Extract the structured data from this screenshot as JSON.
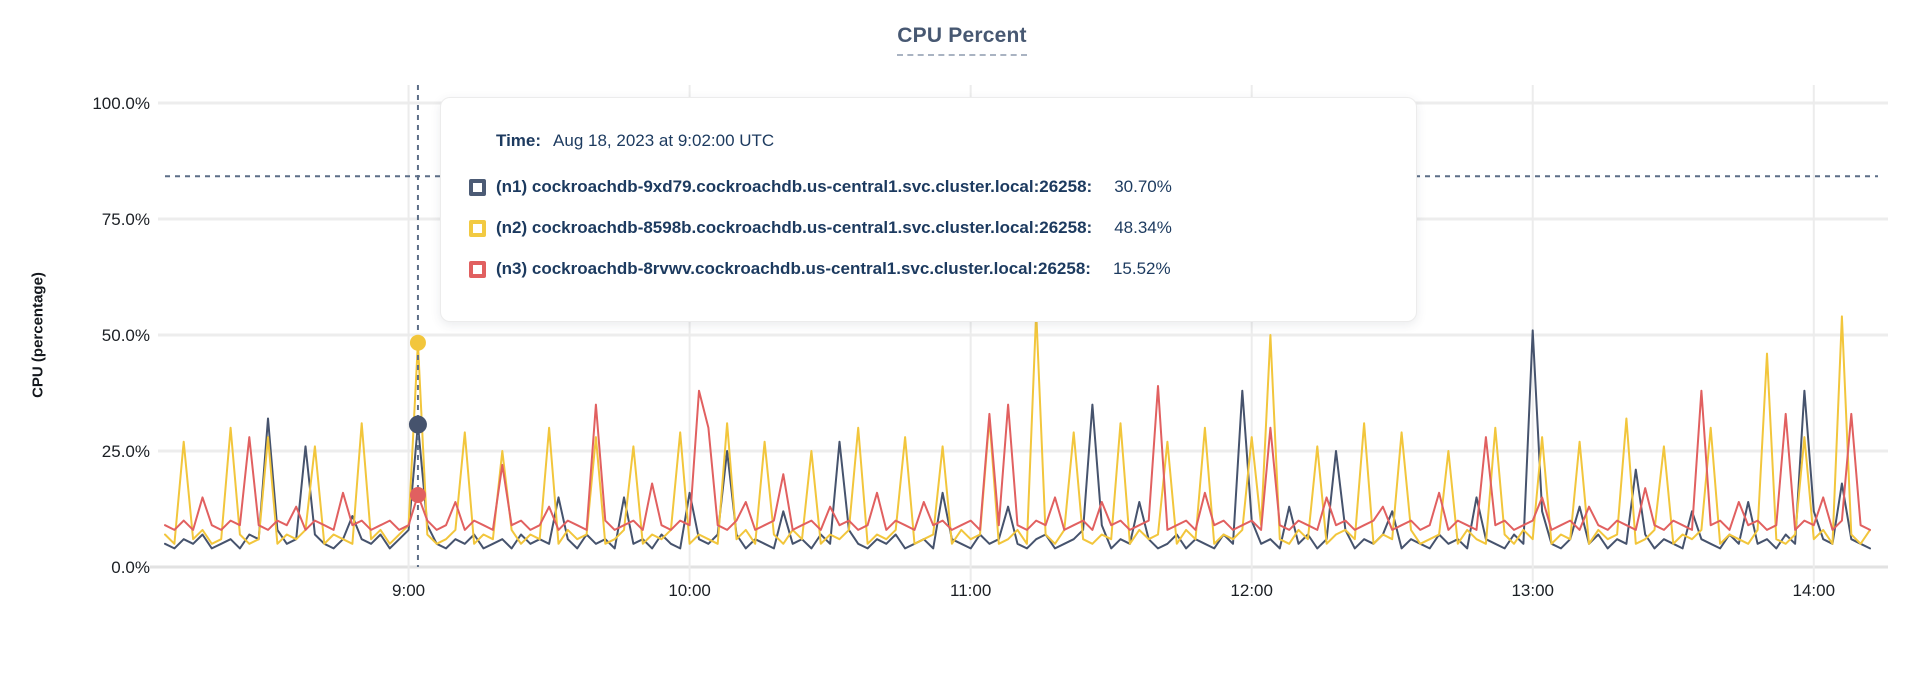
{
  "title": "CPU Percent",
  "ylabel": "CPU (percentage)",
  "tooltip": {
    "time_label": "Time:",
    "time_value": "Aug 18, 2023 at 9:02:00 UTC",
    "rows": [
      {
        "label": "(n1) cockroachdb-9xd79.cockroachdb.us-central1.svc.cluster.local:26258:",
        "value": "30.70%",
        "color": "#4c5b75"
      },
      {
        "label": "(n2) cockroachdb-8598b.cockroachdb.us-central1.svc.cluster.local:26258:",
        "value": "48.34%",
        "color": "#f2ca42"
      },
      {
        "label": "(n3) cockroachdb-8rvwv.cockroachdb.us-central1.svc.cluster.local:26258:",
        "value": "15.52%",
        "color": "#e16060"
      }
    ]
  },
  "chart_data": {
    "type": "line",
    "title": "CPU Percent",
    "xlabel": "",
    "ylabel": "CPU (percentage)",
    "ylim": [
      0,
      100
    ],
    "grid": true,
    "legend_position": "tooltip",
    "y_tick_labels": [
      "0.0%",
      "25.0%",
      "50.0%",
      "75.0%",
      "100.0%"
    ],
    "y_tick_values": [
      0,
      25,
      50,
      75,
      100
    ],
    "x_tick_labels": [
      "9:00",
      "10:00",
      "11:00",
      "12:00",
      "13:00",
      "14:00"
    ],
    "x_tick_minutes": [
      52,
      112,
      172,
      232,
      292,
      352
    ],
    "x_total_minutes": 364,
    "sample_interval_minutes": 2,
    "hover": {
      "index": 27,
      "time": "Aug 18, 2023 at 9:02:00 UTC",
      "cursor_y_value": 84.2,
      "values": [
        30.7,
        48.34,
        15.52
      ]
    },
    "series": [
      {
        "name": "(n1) cockroachdb-9xd79.cockroachdb.us-central1.svc.cluster.local:26258",
        "color": "#46536d",
        "values": [
          5,
          4,
          6,
          5,
          7,
          4,
          5,
          6,
          4,
          7,
          6,
          32,
          8,
          5,
          6,
          26,
          7,
          5,
          4,
          6,
          11,
          6,
          5,
          7,
          4,
          6,
          8,
          30.7,
          9,
          5,
          4,
          6,
          5,
          7,
          4,
          5,
          6,
          4,
          7,
          5,
          6,
          5,
          15,
          6,
          4,
          7,
          5,
          6,
          4,
          15,
          5,
          6,
          4,
          7,
          5,
          4,
          16,
          6,
          5,
          7,
          25,
          7,
          4,
          6,
          5,
          4,
          12,
          5,
          6,
          4,
          7,
          5,
          27,
          8,
          5,
          4,
          6,
          5,
          7,
          4,
          5,
          6,
          4,
          16,
          6,
          5,
          4,
          7,
          5,
          6,
          13,
          5,
          4,
          6,
          7,
          4,
          5,
          6,
          8,
          35,
          9,
          4,
          6,
          5,
          14,
          6,
          4,
          5,
          7,
          4,
          6,
          5,
          4,
          7,
          5,
          38,
          10,
          5,
          6,
          4,
          13,
          5,
          7,
          4,
          6,
          25,
          8,
          4,
          6,
          5,
          7,
          12,
          4,
          6,
          5,
          4,
          7,
          5,
          6,
          4,
          15,
          6,
          5,
          4,
          7,
          5,
          51,
          12,
          5,
          4,
          6,
          13,
          5,
          7,
          4,
          6,
          5,
          21,
          7,
          4,
          6,
          5,
          4,
          12,
          6,
          5,
          4,
          7,
          5,
          14,
          5,
          6,
          4,
          7,
          5,
          38,
          12,
          6,
          5,
          18,
          6,
          5,
          4
        ]
      },
      {
        "name": "(n2) cockroachdb-8598b.cockroachdb.us-central1.svc.cluster.local:26258",
        "color": "#f2c63c",
        "values": [
          7,
          5,
          27,
          6,
          8,
          5,
          6,
          30,
          7,
          5,
          6,
          28,
          5,
          7,
          6,
          8,
          26,
          5,
          7,
          6,
          5,
          31,
          6,
          8,
          5,
          7,
          9,
          48.34,
          7,
          5,
          6,
          8,
          29,
          5,
          7,
          6,
          25,
          8,
          5,
          7,
          6,
          30,
          5,
          8,
          6,
          7,
          28,
          5,
          6,
          8,
          26,
          5,
          7,
          6,
          8,
          29,
          5,
          7,
          6,
          5,
          31,
          6,
          8,
          5,
          27,
          7,
          5,
          8,
          6,
          25,
          5,
          7,
          6,
          8,
          30,
          5,
          7,
          6,
          8,
          28,
          5,
          6,
          7,
          26,
          5,
          8,
          6,
          7,
          32,
          5,
          6,
          8,
          5,
          55,
          7,
          5,
          8,
          29,
          6,
          5,
          7,
          6,
          31,
          5,
          8,
          6,
          7,
          27,
          5,
          8,
          6,
          30,
          5,
          7,
          6,
          8,
          28,
          9,
          50,
          6,
          5,
          8,
          6,
          26,
          5,
          7,
          8,
          6,
          31,
          5,
          7,
          6,
          29,
          8,
          5,
          6,
          7,
          25,
          5,
          8,
          6,
          5,
          30,
          7,
          5,
          8,
          6,
          28,
          5,
          7,
          6,
          27,
          5,
          8,
          6,
          7,
          32,
          5,
          6,
          8,
          26,
          5,
          7,
          6,
          8,
          30,
          5,
          7,
          6,
          5,
          8,
          46,
          6,
          5,
          7,
          28,
          6,
          8,
          5,
          54,
          7,
          5,
          8
        ]
      },
      {
        "name": "(n3) cockroachdb-8rvwv.cockroachdb.us-central1.svc.cluster.local:26258",
        "color": "#e16060",
        "values": [
          9,
          8,
          10,
          8,
          15,
          9,
          8,
          10,
          9,
          28,
          9,
          8,
          10,
          9,
          13,
          8,
          10,
          9,
          8,
          16,
          9,
          10,
          8,
          9,
          10,
          8,
          9,
          15.52,
          10,
          8,
          9,
          14,
          8,
          10,
          9,
          8,
          22,
          9,
          10,
          8,
          9,
          13,
          8,
          10,
          9,
          8,
          35,
          10,
          8,
          9,
          10,
          8,
          18,
          9,
          8,
          10,
          9,
          38,
          30,
          9,
          8,
          10,
          14,
          8,
          9,
          10,
          20,
          8,
          9,
          10,
          8,
          13,
          9,
          10,
          8,
          9,
          16,
          8,
          10,
          9,
          8,
          14,
          9,
          10,
          8,
          9,
          10,
          8,
          33,
          9,
          35,
          9,
          8,
          10,
          9,
          15,
          8,
          9,
          10,
          8,
          14,
          9,
          10,
          8,
          9,
          10,
          39,
          8,
          9,
          10,
          8,
          16,
          9,
          10,
          8,
          9,
          10,
          8,
          30,
          9,
          8,
          10,
          9,
          8,
          15,
          9,
          10,
          8,
          9,
          10,
          13,
          8,
          9,
          10,
          8,
          9,
          16,
          8,
          10,
          9,
          8,
          28,
          9,
          10,
          8,
          9,
          10,
          15,
          8,
          9,
          10,
          8,
          13,
          9,
          8,
          10,
          9,
          8,
          17,
          9,
          8,
          10,
          9,
          8,
          38,
          9,
          10,
          8,
          14,
          9,
          10,
          8,
          9,
          33,
          8,
          10,
          9,
          15,
          8,
          10,
          33,
          9,
          8
        ]
      }
    ]
  }
}
